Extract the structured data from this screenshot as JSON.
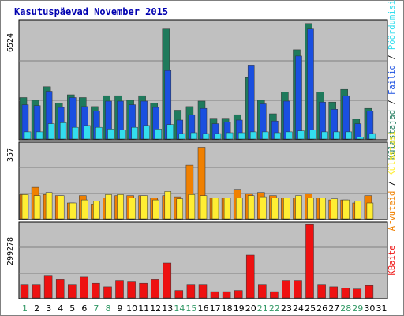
{
  "colors": {
    "background": "#ffffff",
    "panel": "#c0c0c0",
    "gridline": "#808080",
    "title": "#0000b0",
    "weekend_tick": "#339966",
    "weekday_tick": "#000000",
    "axis_text": "#000000",
    "separator": "#000000",
    "visits_color": "#1f7a5c",
    "pages_color": "#1a4fe0",
    "hits_color": "#33ddee",
    "visitors_color": "#f08000",
    "unique_color": "#ffee33",
    "bandwidth_color": "#ee1111"
  },
  "chart_data": {
    "type": "bar",
    "title": "Kasutuspäevad November 2015",
    "x": [
      "1",
      "2",
      "3",
      "4",
      "5",
      "6",
      "7",
      "8",
      "9",
      "10",
      "11",
      "12",
      "13",
      "14",
      "15",
      "16",
      "17",
      "18",
      "19",
      "20",
      "21",
      "22",
      "23",
      "24",
      "25",
      "26",
      "27",
      "28",
      "29",
      "30",
      "31"
    ],
    "weekend_days": [
      "1",
      "7",
      "8",
      "14",
      "15",
      "21",
      "22",
      "28",
      "29"
    ],
    "panels": [
      {
        "ymax_label": "6524",
        "ymax": 6524,
        "legend": [
          {
            "text": "Külastajad",
            "color": "#1f7a5c"
          },
          {
            "text": " / ",
            "color": "#000000"
          },
          {
            "text": "Failid",
            "color": "#1a4fe0"
          },
          {
            "text": " / ",
            "color": "#000000"
          },
          {
            "text": "Pöördumisi",
            "color": "#33ddee"
          }
        ],
        "series": [
          {
            "color": "#1f7a5c",
            "values": [
              2300,
              2150,
              2900,
              2000,
              2450,
              2300,
              1800,
              2400,
              2400,
              2150,
              2400,
              2000,
              6100,
              1600,
              1800,
              2100,
              1150,
              1150,
              1350,
              3400,
              2150,
              1400,
              2600,
              4950,
              6400,
              2600,
              2050,
              2750,
              1100,
              1700,
              0
            ]
          },
          {
            "color": "#1a4fe0",
            "values": [
              1900,
              1850,
              2650,
              1750,
              2300,
              1800,
              1550,
              2100,
              2100,
              1900,
              2100,
              1750,
              3800,
              1050,
              1350,
              1700,
              850,
              950,
              1050,
              4100,
              1950,
              1000,
              2100,
              4600,
              6100,
              2050,
              1650,
              2400,
              850,
              1550,
              0
            ]
          },
          {
            "color": "#33ddee",
            "values": [
              400,
              400,
              850,
              900,
              650,
              750,
              650,
              550,
              500,
              650,
              750,
              550,
              800,
              300,
              350,
              300,
              300,
              350,
              350,
              400,
              400,
              350,
              400,
              450,
              500,
              400,
              400,
              400,
              100,
              300,
              0
            ]
          }
        ]
      },
      {
        "ymax_label": "357",
        "ymax": 357,
        "legend": [
          {
            "text": "Arvuteid",
            "color": "#f08000"
          },
          {
            "text": " / ",
            "color": "#000000"
          },
          {
            "text": "Külastusi",
            "color": "#ffee33"
          }
        ],
        "series": [
          {
            "color": "#f08000",
            "values": [
              115,
              150,
              115,
              110,
              75,
              110,
              70,
              100,
              110,
              110,
              110,
              100,
              110,
              105,
              255,
              340,
              100,
              100,
              140,
              120,
              125,
              110,
              100,
              100,
              120,
              100,
              90,
              90,
              75,
              110,
              0
            ]
          },
          {
            "color": "#ffee33",
            "values": [
              115,
              110,
              125,
              110,
              75,
              90,
              85,
              115,
              115,
              100,
              110,
              90,
              130,
              95,
              115,
              110,
              100,
              100,
              100,
              110,
              105,
              100,
              100,
              110,
              100,
              100,
              95,
              90,
              85,
              75,
              0
            ]
          }
        ]
      },
      {
        "ymax_label": "299278",
        "ymax": 299278,
        "legend": [
          {
            "text": "KBaite",
            "color": "#ee1111"
          }
        ],
        "series": [
          {
            "color": "#ee1111",
            "values": [
              52000,
              52000,
              90000,
              75000,
              52000,
              83000,
              60000,
              45000,
              68000,
              65000,
              60000,
              75000,
              140000,
              30000,
              52000,
              52000,
              25000,
              25000,
              30000,
              172000,
              52000,
              25000,
              68000,
              68000,
              295000,
              52000,
              45000,
              40000,
              36000,
              50000,
              0
            ]
          }
        ]
      }
    ]
  }
}
